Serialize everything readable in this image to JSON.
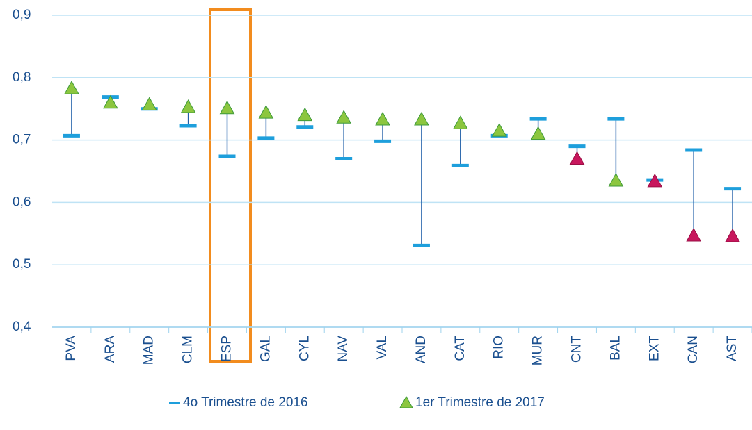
{
  "chart_data": {
    "type": "dumbbell",
    "categories": [
      "PVA",
      "ARA",
      "MAD",
      "CLM",
      "ESP",
      "GAL",
      "CYL",
      "NAV",
      "VAL",
      "AND",
      "CAT",
      "RIO",
      "MUR",
      "CNT",
      "BAL",
      "EXT",
      "CAN",
      "AST"
    ],
    "series": [
      {
        "name": "4o Trimestre de 2016",
        "color": "#1e9fdc",
        "marker": "dash",
        "values": [
          0.707,
          0.769,
          0.75,
          0.723,
          0.674,
          0.703,
          0.721,
          0.67,
          0.698,
          0.531,
          0.659,
          0.707,
          0.734,
          0.69,
          0.734,
          0.636,
          0.684,
          0.622
        ]
      },
      {
        "name": "1er Trimestre de 2017",
        "color": "#8cc63f",
        "marker": "triangle",
        "point_colors": [
          "#8cc63f",
          "#8cc63f",
          "#8cc63f",
          "#8cc63f",
          "#8cc63f",
          "#8cc63f",
          "#8cc63f",
          "#8cc63f",
          "#8cc63f",
          "#8cc63f",
          "#8cc63f",
          "#8cc63f",
          "#8cc63f",
          "#c8175d",
          "#8cc63f",
          "#c8175d",
          "#c8175d",
          "#c8175d"
        ],
        "values": [
          0.783,
          0.76,
          0.757,
          0.753,
          0.751,
          0.744,
          0.74,
          0.736,
          0.733,
          0.733,
          0.727,
          0.715,
          0.71,
          0.67,
          0.635,
          0.634,
          0.547,
          0.546
        ]
      }
    ],
    "connector_color": "#1f5ea8",
    "ylim": [
      0.4,
      0.9
    ],
    "yticks": [
      {
        "value": 0.4,
        "label": "0,4"
      },
      {
        "value": 0.5,
        "label": "0,5"
      },
      {
        "value": 0.6,
        "label": "0,6"
      },
      {
        "value": 0.7,
        "label": "0,7"
      },
      {
        "value": 0.8,
        "label": "0,8"
      },
      {
        "value": 0.9,
        "label": "0,9"
      }
    ],
    "grid": true,
    "legend": "bottom"
  }
}
